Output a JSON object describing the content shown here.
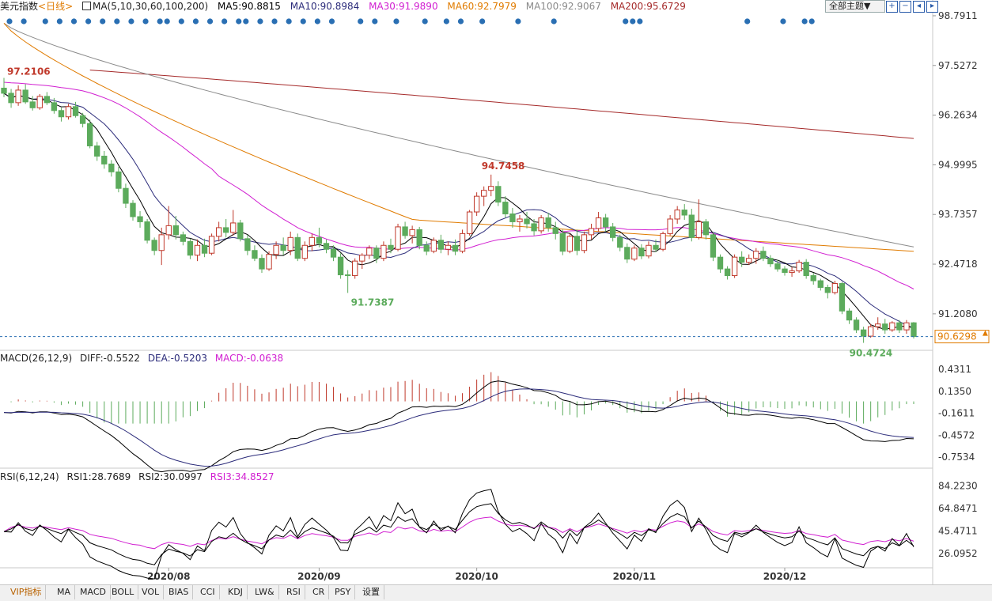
{
  "header": {
    "title": "美元指数",
    "period": "<日线>",
    "ma_label": "MA(5,10,30,60,100,200)",
    "ma5": "MA5:90.8815",
    "ma10": "MA10:90.8984",
    "ma30": "MA30:91.9890",
    "ma60": "MA60:92.7979",
    "ma100": "MA100:92.9067",
    "ma200": "MA200:95.6729",
    "theme_button": "全部主题▼",
    "tool_icons": [
      "zoom-in-icon",
      "zoom-out-icon",
      "prev-icon",
      "next-icon"
    ]
  },
  "macd_header": {
    "name": "MACD(26,12,9)",
    "diff": "DIFF:-0.5522",
    "dea": "DEA:-0.5203",
    "macd": "MACD:-0.0638"
  },
  "rsi_header": {
    "name": "RSI(6,12,24)",
    "rsi1": "RSI1:28.7689",
    "rsi2": "RSI2:30.0997",
    "rsi3": "RSI3:34.8527"
  },
  "tabs": [
    "VIP指标",
    "MA",
    "MACD",
    "BOLL",
    "VOL",
    "BIAS",
    "CCI",
    "KDJ",
    "LW&",
    "RSI",
    "CR",
    "PSY",
    "设置"
  ],
  "colors": {
    "up": "#c0392b",
    "down": "#5cab5c",
    "ma5": "#000000",
    "ma10": "#2b2b7a",
    "ma30": "#d11fd1",
    "ma60": "#e07b00",
    "ma100": "#8a8a8a",
    "ma200": "#a52a2a",
    "macd_pos": "#c0392b",
    "macd_neg": "#5cab5c",
    "rsi3": "#d11fd1",
    "marker": "#2a6fb3",
    "lastprice": "#e07b00"
  },
  "chart_data": [
    {
      "type": "candlestick",
      "x_ticks": [
        "2020/08",
        "2020/09",
        "2020/10",
        "2020/11",
        "2020/12"
      ],
      "y_ticks": [
        "98.7911",
        "97.5272",
        "96.2634",
        "94.9995",
        "93.7357",
        "92.4718",
        "91.2080"
      ],
      "ylim": [
        90.34,
        98.79
      ],
      "annotations": {
        "high_a": "97.2106",
        "high_b": "94.7458",
        "low_a": "91.7387",
        "low_b": "90.4724"
      },
      "last_price": "90.6298",
      "ohlc": [
        [
          96.95,
          97.21,
          96.72,
          96.82
        ],
        [
          96.82,
          96.93,
          96.45,
          96.58
        ],
        [
          96.58,
          97.02,
          96.5,
          96.9
        ],
        [
          96.9,
          97.05,
          96.55,
          96.6
        ],
        [
          96.6,
          96.75,
          96.38,
          96.45
        ],
        [
          96.45,
          96.8,
          96.4,
          96.74
        ],
        [
          96.74,
          96.85,
          96.52,
          96.58
        ],
        [
          96.58,
          96.7,
          96.3,
          96.38
        ],
        [
          96.38,
          96.45,
          96.1,
          96.22
        ],
        [
          96.22,
          96.55,
          96.15,
          96.48
        ],
        [
          96.48,
          96.6,
          96.2,
          96.25
        ],
        [
          96.25,
          96.32,
          95.95,
          96.05
        ],
        [
          96.05,
          96.15,
          95.42,
          95.48
        ],
        [
          95.48,
          95.58,
          95.1,
          95.22
        ],
        [
          95.22,
          95.35,
          94.9,
          95.02
        ],
        [
          95.02,
          95.12,
          94.7,
          94.82
        ],
        [
          94.82,
          94.95,
          94.3,
          94.4
        ],
        [
          94.4,
          94.52,
          93.9,
          94.02
        ],
        [
          94.02,
          94.1,
          93.58,
          93.68
        ],
        [
          93.68,
          93.82,
          93.4,
          93.55
        ],
        [
          93.55,
          93.62,
          93.0,
          93.08
        ],
        [
          93.08,
          93.15,
          92.7,
          92.82
        ],
        [
          92.82,
          93.4,
          92.45,
          93.22
        ],
        [
          93.22,
          93.95,
          93.1,
          93.45
        ],
        [
          93.45,
          93.7,
          93.1,
          93.22
        ],
        [
          93.22,
          93.3,
          92.95,
          93.05
        ],
        [
          93.05,
          93.12,
          92.6,
          92.7
        ],
        [
          92.7,
          93.1,
          92.55,
          92.95
        ],
        [
          92.95,
          93.12,
          92.65,
          92.75
        ],
        [
          92.75,
          93.25,
          92.7,
          93.18
        ],
        [
          93.18,
          93.55,
          93.05,
          93.4
        ],
        [
          93.4,
          93.62,
          93.15,
          93.28
        ],
        [
          93.28,
          93.85,
          93.2,
          93.52
        ],
        [
          93.52,
          93.6,
          93.05,
          93.12
        ],
        [
          93.12,
          93.22,
          92.7,
          92.82
        ],
        [
          92.82,
          92.95,
          92.55,
          92.62
        ],
        [
          92.62,
          92.72,
          92.25,
          92.35
        ],
        [
          92.35,
          92.8,
          92.3,
          92.72
        ],
        [
          92.72,
          93.05,
          92.6,
          92.95
        ],
        [
          92.95,
          93.15,
          92.7,
          92.82
        ],
        [
          92.82,
          93.3,
          92.7,
          93.15
        ],
        [
          93.15,
          93.25,
          92.55,
          92.62
        ],
        [
          92.62,
          93.05,
          92.55,
          92.95
        ],
        [
          92.95,
          93.25,
          92.8,
          93.15
        ],
        [
          93.15,
          93.4,
          92.9,
          93.0
        ],
        [
          93.0,
          93.1,
          92.75,
          92.85
        ],
        [
          92.85,
          92.95,
          92.55,
          92.65
        ],
        [
          92.65,
          92.75,
          92.1,
          92.2
        ],
        [
          92.2,
          92.32,
          91.74,
          92.18
        ],
        [
          92.18,
          92.62,
          92.1,
          92.55
        ],
        [
          92.55,
          92.75,
          92.35,
          92.7
        ],
        [
          92.7,
          92.95,
          92.6,
          92.88
        ],
        [
          92.88,
          92.95,
          92.5,
          92.62
        ],
        [
          92.62,
          93.05,
          92.55,
          92.95
        ],
        [
          92.95,
          93.12,
          92.75,
          92.85
        ],
        [
          92.85,
          93.5,
          92.8,
          93.42
        ],
        [
          93.42,
          93.55,
          93.12,
          93.2
        ],
        [
          93.2,
          93.45,
          93.0,
          93.35
        ],
        [
          93.35,
          93.42,
          92.85,
          92.95
        ],
        [
          92.95,
          93.05,
          92.7,
          92.8
        ],
        [
          92.8,
          93.15,
          92.75,
          93.08
        ],
        [
          93.08,
          93.22,
          92.75,
          92.85
        ],
        [
          92.85,
          93.05,
          92.7,
          92.95
        ],
        [
          92.95,
          93.1,
          92.7,
          92.8
        ],
        [
          92.8,
          93.35,
          92.75,
          93.25
        ],
        [
          93.25,
          93.85,
          93.2,
          93.8
        ],
        [
          93.8,
          94.3,
          93.7,
          94.2
        ],
        [
          94.2,
          94.45,
          93.95,
          94.35
        ],
        [
          94.35,
          94.75,
          94.2,
          94.45
        ],
        [
          94.45,
          94.58,
          93.95,
          94.05
        ],
        [
          94.05,
          94.2,
          93.65,
          93.75
        ],
        [
          93.75,
          93.9,
          93.4,
          93.55
        ],
        [
          93.55,
          93.72,
          93.3,
          93.62
        ],
        [
          93.62,
          93.8,
          93.38,
          93.5
        ],
        [
          93.5,
          93.62,
          93.2,
          93.32
        ],
        [
          93.32,
          93.72,
          93.25,
          93.65
        ],
        [
          93.65,
          93.78,
          93.3,
          93.4
        ],
        [
          93.4,
          93.55,
          93.1,
          93.25
        ],
        [
          93.25,
          93.35,
          92.7,
          92.8
        ],
        [
          92.8,
          93.25,
          92.75,
          93.18
        ],
        [
          93.18,
          93.35,
          92.7,
          92.82
        ],
        [
          92.82,
          93.3,
          92.75,
          93.22
        ],
        [
          93.22,
          93.5,
          93.1,
          93.38
        ],
        [
          93.38,
          93.8,
          93.3,
          93.65
        ],
        [
          93.65,
          93.75,
          93.3,
          93.42
        ],
        [
          93.42,
          93.52,
          93.05,
          93.15
        ],
        [
          93.15,
          93.22,
          92.8,
          92.9
        ],
        [
          92.9,
          93.0,
          92.5,
          92.6
        ],
        [
          92.6,
          92.95,
          92.55,
          92.88
        ],
        [
          92.88,
          92.98,
          92.6,
          92.68
        ],
        [
          92.68,
          93.05,
          92.62,
          92.95
        ],
        [
          92.95,
          93.1,
          92.78,
          92.85
        ],
        [
          92.85,
          93.3,
          92.8,
          93.25
        ],
        [
          93.25,
          93.72,
          93.2,
          93.62
        ],
        [
          93.62,
          93.95,
          93.5,
          93.85
        ],
        [
          93.85,
          94.0,
          93.6,
          93.72
        ],
        [
          93.72,
          93.88,
          93.05,
          93.15
        ],
        [
          93.15,
          94.12,
          93.1,
          93.55
        ],
        [
          93.55,
          93.62,
          93.1,
          93.22
        ],
        [
          93.22,
          93.28,
          92.55,
          92.65
        ],
        [
          92.65,
          92.72,
          92.25,
          92.35
        ],
        [
          92.35,
          92.42,
          92.08,
          92.18
        ],
        [
          92.18,
          92.72,
          92.12,
          92.65
        ],
        [
          92.65,
          92.8,
          92.4,
          92.52
        ],
        [
          92.52,
          92.72,
          92.45,
          92.62
        ],
        [
          92.62,
          92.88,
          92.48,
          92.8
        ],
        [
          92.8,
          92.92,
          92.55,
          92.62
        ],
        [
          92.62,
          92.7,
          92.4,
          92.48
        ],
        [
          92.48,
          92.58,
          92.28,
          92.35
        ],
        [
          92.35,
          92.42,
          92.18,
          92.26
        ],
        [
          92.26,
          92.4,
          92.15,
          92.3
        ],
        [
          92.3,
          92.58,
          92.25,
          92.52
        ],
        [
          92.52,
          92.6,
          92.1,
          92.18
        ],
        [
          92.18,
          92.25,
          91.95,
          92.05
        ],
        [
          92.05,
          92.1,
          91.8,
          91.88
        ],
        [
          91.88,
          91.95,
          91.6,
          91.75
        ],
        [
          91.75,
          92.05,
          91.7,
          91.98
        ],
        [
          91.98,
          92.02,
          91.2,
          91.28
        ],
        [
          91.28,
          91.35,
          90.95,
          91.05
        ],
        [
          91.05,
          91.12,
          90.72,
          90.8
        ],
        [
          90.8,
          90.88,
          90.47,
          90.64
        ],
        [
          90.64,
          90.95,
          90.6,
          90.88
        ],
        [
          90.88,
          91.12,
          90.8,
          90.95
        ],
        [
          90.95,
          91.08,
          90.7,
          90.8
        ],
        [
          90.8,
          91.02,
          90.75,
          90.98
        ],
        [
          90.98,
          91.05,
          90.72,
          90.8
        ],
        [
          90.8,
          91.05,
          90.7,
          90.98
        ],
        [
          90.98,
          91.0,
          90.58,
          90.63
        ]
      ]
    },
    {
      "type": "bar+line",
      "title": "MACD(26,12,9)",
      "y_ticks": [
        "0.4311",
        "0.1350",
        "-0.1611",
        "-0.4572",
        "-0.7534"
      ],
      "ylim": [
        -0.86,
        0.53
      ]
    },
    {
      "type": "line",
      "title": "RSI(6,12,24)",
      "y_ticks": [
        "84.2230",
        "64.8471",
        "45.4711",
        "26.0952"
      ],
      "ylim": [
        14,
        90
      ]
    }
  ]
}
